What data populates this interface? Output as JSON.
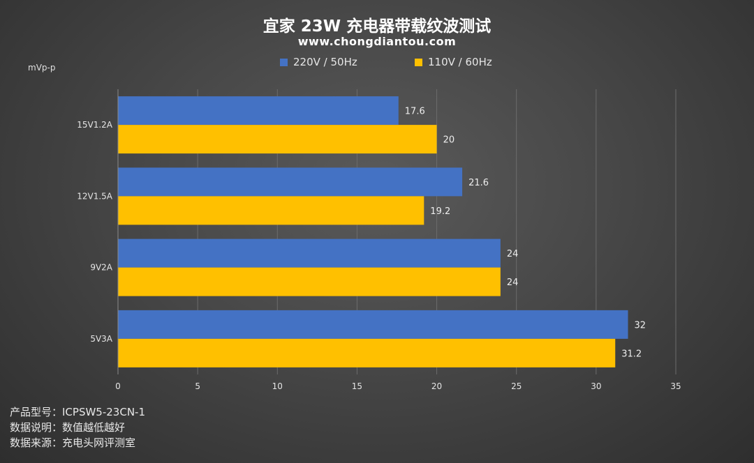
{
  "title": "宜家 23W 充电器带载纹波测试",
  "subtitle": "www.chongdiantou.com",
  "unit_label": "mVp-p",
  "notes": [
    "产品型号：ICPSW5-23CN-1",
    "数据说明：数值越低越好",
    "数据来源：充电头网评测室"
  ],
  "chart_data": {
    "type": "bar",
    "orientation": "horizontal",
    "title": "宜家 23W 充电器带载纹波测试",
    "subtitle": "www.chongdiantou.com",
    "xlabel": "",
    "ylabel": "mVp-p",
    "categories": [
      "15V1.2A",
      "12V1.5A",
      "9V2A",
      "5V3A"
    ],
    "series": [
      {
        "name": "220V / 50Hz",
        "color": "#4472c4",
        "values": [
          17.6,
          21.6,
          24,
          32
        ]
      },
      {
        "name": "110V / 60Hz",
        "color": "#ffc000",
        "values": [
          20,
          19.2,
          24,
          31.2
        ]
      }
    ],
    "xlim": [
      0,
      35
    ],
    "xticks": [
      0,
      5,
      10,
      15,
      20,
      25,
      30,
      35
    ],
    "grid": "vertical",
    "legend_position": "top"
  }
}
